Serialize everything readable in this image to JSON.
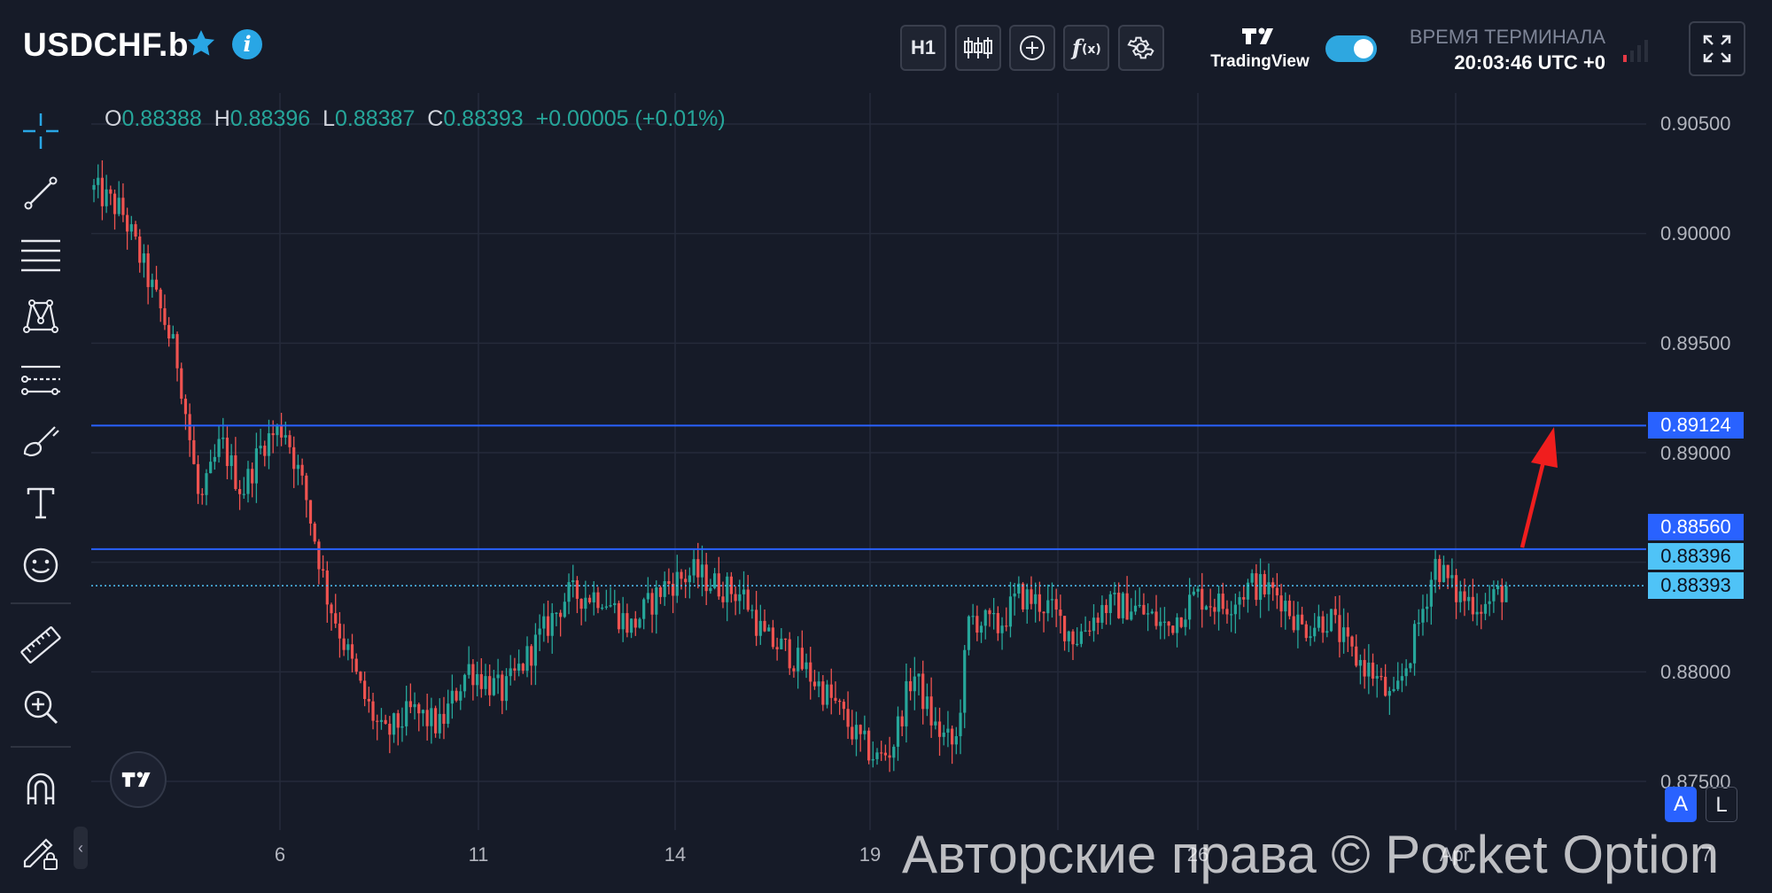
{
  "header": {
    "symbol": "USDCHF.b",
    "favorite_icon": "star-icon",
    "info_icon": "info-icon",
    "toolbar": {
      "timeframe_label": "H1",
      "chart_type_icon": "candlestick-icon",
      "add_indicator_icon": "plus-circle-icon",
      "indicators_icon": "function-icon",
      "settings_icon": "gear-icon"
    },
    "tradingview_label": "TradingView",
    "toggle_on": true,
    "terminal_time_label": "ВРЕМЯ ТЕРМИНАЛА",
    "terminal_time_value": "20:03:46 UTC +0",
    "fullscreen_icon": "fullscreen-icon"
  },
  "ohlc": {
    "o_label": "O",
    "o_value": "0.88388",
    "h_label": "H",
    "h_value": "0.88396",
    "l_label": "L",
    "l_value": "0.88387",
    "c_label": "C",
    "c_value": "0.88393",
    "change": "+0.00005 (+0.01%)"
  },
  "left_tools": [
    "crosshair-icon",
    "trend-line-icon",
    "horizontal-lines-icon",
    "pattern-icon",
    "measure-lines-icon",
    "brush-icon",
    "text-icon",
    "emoji-icon",
    "ruler-icon",
    "zoom-in-icon",
    "magnet-icon",
    "lock-drawing-icon"
  ],
  "price_axis": {
    "ticks": [
      "0.90500",
      "0.90000",
      "0.89500",
      "0.89000",
      "0.88000",
      "0.87500"
    ],
    "markers": {
      "level_upper": "0.89124",
      "level_lower": "0.88560",
      "high_marker": "0.88396",
      "current_price": "0.88393"
    }
  },
  "time_axis": {
    "ticks": [
      "6",
      "11",
      "14",
      "19",
      "26",
      "Apr",
      "7"
    ]
  },
  "scale_buttons": {
    "auto": "A",
    "log": "L"
  },
  "watermark": "Авторские права © Pocket Option",
  "colors": {
    "background": "#161b28",
    "up": "#26a69a",
    "down": "#ef5350",
    "level_line": "#2962ff",
    "current_price": "#4fc3f7",
    "arrow": "#f01e1e"
  },
  "chart_data": {
    "type": "candlestick",
    "symbol": "USDCHF.b",
    "timeframe": "H1",
    "ylim": [
      0.874,
      0.908
    ],
    "x_ticks": [
      "6",
      "11",
      "14",
      "19",
      "26",
      "Apr",
      "7"
    ],
    "horizontal_levels": [
      0.89124,
      0.8856
    ],
    "current_price": 0.88393,
    "anchors": [
      [
        0.0,
        0.902
      ],
      [
        0.02,
        0.901
      ],
      [
        0.05,
        0.896
      ],
      [
        0.06,
        0.894
      ],
      [
        0.075,
        0.8875
      ],
      [
        0.09,
        0.8905
      ],
      [
        0.105,
        0.8882
      ],
      [
        0.12,
        0.8905
      ],
      [
        0.135,
        0.8912
      ],
      [
        0.15,
        0.888
      ],
      [
        0.165,
        0.8835
      ],
      [
        0.19,
        0.879
      ],
      [
        0.205,
        0.877
      ],
      [
        0.225,
        0.8782
      ],
      [
        0.245,
        0.8775
      ],
      [
        0.265,
        0.8802
      ],
      [
        0.29,
        0.879
      ],
      [
        0.31,
        0.881
      ],
      [
        0.335,
        0.8835
      ],
      [
        0.36,
        0.8835
      ],
      [
        0.38,
        0.882
      ],
      [
        0.405,
        0.884
      ],
      [
        0.425,
        0.8845
      ],
      [
        0.44,
        0.884
      ],
      [
        0.46,
        0.8835
      ],
      [
        0.475,
        0.8815
      ],
      [
        0.49,
        0.881
      ],
      [
        0.505,
        0.88
      ],
      [
        0.525,
        0.8785
      ],
      [
        0.54,
        0.877
      ],
      [
        0.555,
        0.876
      ],
      [
        0.565,
        0.8765
      ],
      [
        0.58,
        0.88
      ],
      [
        0.595,
        0.8775
      ],
      [
        0.61,
        0.8765
      ],
      [
        0.62,
        0.8825
      ],
      [
        0.64,
        0.882
      ],
      [
        0.655,
        0.8835
      ],
      [
        0.675,
        0.883
      ],
      [
        0.695,
        0.8815
      ],
      [
        0.715,
        0.883
      ],
      [
        0.735,
        0.883
      ],
      [
        0.76,
        0.882
      ],
      [
        0.78,
        0.8835
      ],
      [
        0.8,
        0.883
      ],
      [
        0.82,
        0.884
      ],
      [
        0.84,
        0.8835
      ],
      [
        0.855,
        0.882
      ],
      [
        0.875,
        0.8825
      ],
      [
        0.89,
        0.8808
      ],
      [
        0.905,
        0.88
      ],
      [
        0.92,
        0.8785
      ],
      [
        0.935,
        0.8815
      ],
      [
        0.95,
        0.885
      ],
      [
        0.965,
        0.8835
      ],
      [
        0.985,
        0.883
      ],
      [
        1.0,
        0.8839
      ]
    ]
  }
}
